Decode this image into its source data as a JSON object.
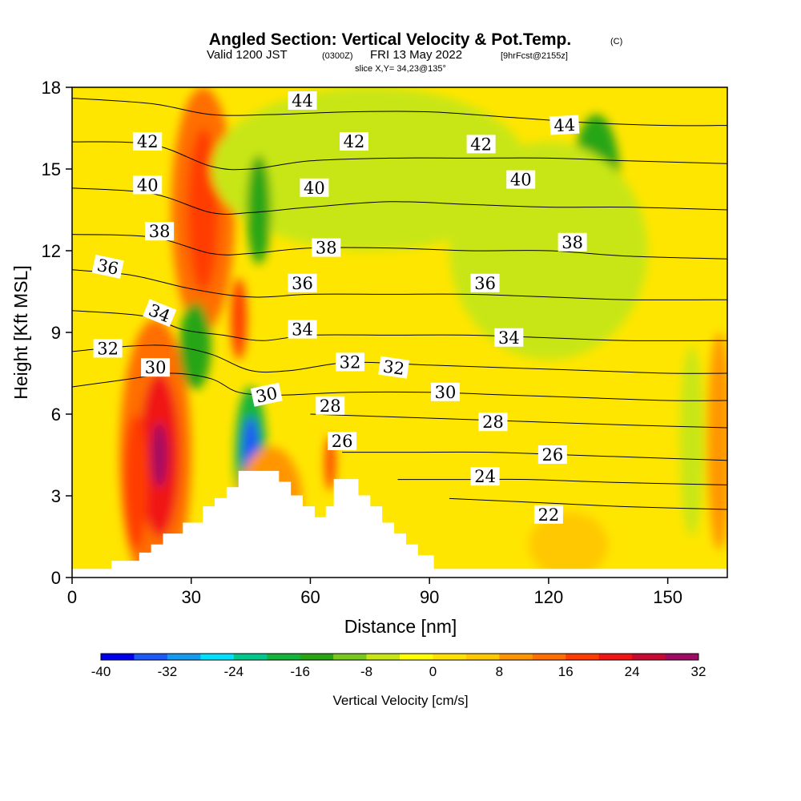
{
  "chart_data": {
    "type": "heatmap",
    "title": "Angled Section: Vertical Velocity & Pot.Temp.",
    "title_mark": "(C)",
    "subtitle_parts": [
      "Valid 1200 JST",
      "(0300Z)",
      "FRI 13 May 2022",
      "[9hrFcst@2155z]"
    ],
    "slice_label": "slice X,Y= 34,23@135°",
    "xlabel": "Distance [nm]",
    "ylabel": "Height [Kft MSL]",
    "xlim": [
      0,
      165
    ],
    "ylim": [
      0,
      18
    ],
    "xticks": [
      0,
      30,
      60,
      90,
      120,
      150
    ],
    "yticks": [
      0,
      3,
      6,
      9,
      12,
      15,
      18
    ],
    "colorbar": {
      "title": "Vertical Velocity [cm/s]",
      "levels": [
        -40,
        -36,
        -32,
        -28,
        -24,
        -20,
        -16,
        -12,
        -8,
        -4,
        0,
        4,
        8,
        12,
        16,
        20,
        24,
        28,
        32
      ],
      "tick_labels": [
        -40,
        -32,
        -24,
        -16,
        -8,
        0,
        8,
        16,
        24,
        32
      ],
      "colors": [
        "#0000ee",
        "#1e5af5",
        "#149bf0",
        "#00e1ff",
        "#00c88c",
        "#14b43c",
        "#28a514",
        "#78c81e",
        "#c8e614",
        "#ffff00",
        "#ffe100",
        "#ffc800",
        "#ff9600",
        "#ff6e00",
        "#ff3c00",
        "#f01414",
        "#c80a32",
        "#a00a64",
        "#780a8c"
      ]
    },
    "terrain_profile": [
      [
        0,
        0.3
      ],
      [
        10,
        0.3
      ],
      [
        10,
        0.6
      ],
      [
        17,
        0.6
      ],
      [
        17,
        0.9
      ],
      [
        20,
        0.9
      ],
      [
        20,
        1.2
      ],
      [
        23,
        1.2
      ],
      [
        23,
        1.6
      ],
      [
        28,
        1.6
      ],
      [
        28,
        2.0
      ],
      [
        33,
        2.0
      ],
      [
        33,
        2.6
      ],
      [
        36,
        2.6
      ],
      [
        36,
        2.9
      ],
      [
        39,
        2.9
      ],
      [
        39,
        3.3
      ],
      [
        42,
        3.3
      ],
      [
        42,
        3.9
      ],
      [
        52,
        3.9
      ],
      [
        52,
        3.5
      ],
      [
        55,
        3.5
      ],
      [
        55,
        3.0
      ],
      [
        58,
        3.0
      ],
      [
        58,
        2.6
      ],
      [
        61,
        2.6
      ],
      [
        61,
        2.2
      ],
      [
        64,
        2.2
      ],
      [
        64,
        2.6
      ],
      [
        66,
        2.6
      ],
      [
        66,
        3.6
      ],
      [
        72,
        3.6
      ],
      [
        72,
        3.0
      ],
      [
        75,
        3.0
      ],
      [
        75,
        2.6
      ],
      [
        78,
        2.6
      ],
      [
        78,
        2.0
      ],
      [
        81,
        2.0
      ],
      [
        81,
        1.6
      ],
      [
        84,
        1.6
      ],
      [
        84,
        1.2
      ],
      [
        87,
        1.2
      ],
      [
        87,
        0.8
      ],
      [
        91,
        0.8
      ],
      [
        91,
        0.3
      ],
      [
        165,
        0.3
      ]
    ],
    "theta_contours": [
      {
        "label": "22",
        "points": [
          [
            95,
            2.9
          ],
          [
            110,
            2.8
          ],
          [
            125,
            2.7
          ],
          [
            140,
            2.6
          ],
          [
            165,
            2.5
          ]
        ]
      },
      {
        "label": "24",
        "points": [
          [
            82,
            3.6
          ],
          [
            100,
            3.6
          ],
          [
            115,
            3.6
          ],
          [
            135,
            3.5
          ],
          [
            165,
            3.4
          ]
        ]
      },
      {
        "label": "26",
        "points": [
          [
            68,
            4.6
          ],
          [
            85,
            4.6
          ],
          [
            105,
            4.6
          ],
          [
            125,
            4.5
          ],
          [
            145,
            4.4
          ],
          [
            165,
            4.3
          ]
        ]
      },
      {
        "label": "28",
        "points": [
          [
            60,
            6.0
          ],
          [
            80,
            5.9
          ],
          [
            100,
            5.8
          ],
          [
            120,
            5.7
          ],
          [
            140,
            5.6
          ],
          [
            165,
            5.5
          ]
        ]
      },
      {
        "label": "30",
        "points": [
          [
            0,
            7.0
          ],
          [
            15,
            7.3
          ],
          [
            25,
            7.5
          ],
          [
            35,
            7.3
          ],
          [
            42,
            6.8
          ],
          [
            52,
            6.7
          ],
          [
            70,
            6.8
          ],
          [
            90,
            6.8
          ],
          [
            110,
            6.7
          ],
          [
            130,
            6.6
          ],
          [
            150,
            6.5
          ],
          [
            165,
            6.5
          ]
        ]
      },
      {
        "label": "32",
        "points": [
          [
            0,
            8.3
          ],
          [
            15,
            8.5
          ],
          [
            25,
            8.5
          ],
          [
            35,
            8.2
          ],
          [
            45,
            7.6
          ],
          [
            55,
            7.6
          ],
          [
            70,
            7.9
          ],
          [
            90,
            7.8
          ],
          [
            110,
            7.7
          ],
          [
            130,
            7.6
          ],
          [
            150,
            7.5
          ],
          [
            165,
            7.5
          ]
        ]
      },
      {
        "label": "34",
        "points": [
          [
            0,
            9.8
          ],
          [
            18,
            9.6
          ],
          [
            28,
            9.1
          ],
          [
            38,
            8.9
          ],
          [
            48,
            8.7
          ],
          [
            60,
            8.9
          ],
          [
            80,
            8.9
          ],
          [
            100,
            8.9
          ],
          [
            120,
            8.8
          ],
          [
            140,
            8.7
          ],
          [
            165,
            8.7
          ]
        ]
      },
      {
        "label": "36",
        "points": [
          [
            0,
            11.3
          ],
          [
            15,
            11.1
          ],
          [
            30,
            10.6
          ],
          [
            45,
            10.3
          ],
          [
            60,
            10.4
          ],
          [
            80,
            10.4
          ],
          [
            100,
            10.4
          ],
          [
            120,
            10.3
          ],
          [
            140,
            10.2
          ],
          [
            165,
            10.2
          ]
        ]
      },
      {
        "label": "38",
        "points": [
          [
            0,
            12.6
          ],
          [
            20,
            12.5
          ],
          [
            35,
            11.9
          ],
          [
            45,
            11.9
          ],
          [
            60,
            12.1
          ],
          [
            80,
            12.1
          ],
          [
            100,
            12.0
          ],
          [
            120,
            12.0
          ],
          [
            140,
            11.8
          ],
          [
            165,
            11.7
          ]
        ]
      },
      {
        "label": "40",
        "points": [
          [
            0,
            14.3
          ],
          [
            20,
            14.1
          ],
          [
            35,
            13.4
          ],
          [
            45,
            13.4
          ],
          [
            60,
            13.6
          ],
          [
            80,
            13.8
          ],
          [
            100,
            13.7
          ],
          [
            120,
            13.6
          ],
          [
            140,
            13.6
          ],
          [
            165,
            13.5
          ]
        ]
      },
      {
        "label": "42",
        "points": [
          [
            0,
            16.0
          ],
          [
            20,
            15.9
          ],
          [
            35,
            15.1
          ],
          [
            45,
            15.0
          ],
          [
            60,
            15.3
          ],
          [
            80,
            15.4
          ],
          [
            100,
            15.4
          ],
          [
            120,
            15.4
          ],
          [
            140,
            15.3
          ],
          [
            165,
            15.2
          ]
        ]
      },
      {
        "label": "44",
        "points": [
          [
            0,
            17.6
          ],
          [
            20,
            17.4
          ],
          [
            35,
            17.0
          ],
          [
            50,
            17.0
          ],
          [
            70,
            17.1
          ],
          [
            90,
            17.1
          ],
          [
            110,
            16.9
          ],
          [
            130,
            16.7
          ],
          [
            150,
            16.6
          ],
          [
            165,
            16.6
          ]
        ]
      }
    ],
    "contour_labels": [
      {
        "text": "44",
        "x": 58,
        "y": 17.5,
        "angle": 0
      },
      {
        "text": "44",
        "x": 124,
        "y": 16.6,
        "angle": -3
      },
      {
        "text": "42",
        "x": 19,
        "y": 16.0,
        "angle": 0
      },
      {
        "text": "42",
        "x": 71,
        "y": 16.0,
        "angle": 0
      },
      {
        "text": "42",
        "x": 103,
        "y": 15.9,
        "angle": 0
      },
      {
        "text": "40",
        "x": 19,
        "y": 14.4,
        "angle": 0
      },
      {
        "text": "40",
        "x": 61,
        "y": 14.3,
        "angle": 0
      },
      {
        "text": "40",
        "x": 113,
        "y": 14.6,
        "angle": 0
      },
      {
        "text": "38",
        "x": 22,
        "y": 12.7,
        "angle": 0
      },
      {
        "text": "38",
        "x": 64,
        "y": 12.1,
        "angle": 0
      },
      {
        "text": "38",
        "x": 126,
        "y": 12.3,
        "angle": 0
      },
      {
        "text": "36",
        "x": 9,
        "y": 11.4,
        "angle": 12
      },
      {
        "text": "36",
        "x": 58,
        "y": 10.8,
        "angle": 0
      },
      {
        "text": "36",
        "x": 104,
        "y": 10.8,
        "angle": 0
      },
      {
        "text": "34",
        "x": 22,
        "y": 9.7,
        "angle": 22
      },
      {
        "text": "34",
        "x": 58,
        "y": 9.1,
        "angle": 0
      },
      {
        "text": "34",
        "x": 110,
        "y": 8.8,
        "angle": 0
      },
      {
        "text": "32",
        "x": 9,
        "y": 8.4,
        "angle": 0
      },
      {
        "text": "32",
        "x": 70,
        "y": 7.9,
        "angle": 0
      },
      {
        "text": "32",
        "x": 81,
        "y": 7.7,
        "angle": 8
      },
      {
        "text": "30",
        "x": 21,
        "y": 7.7,
        "angle": 0
      },
      {
        "text": "30",
        "x": 49,
        "y": 6.7,
        "angle": -12
      },
      {
        "text": "30",
        "x": 94,
        "y": 6.8,
        "angle": 0
      },
      {
        "text": "28",
        "x": 65,
        "y": 6.3,
        "angle": 0
      },
      {
        "text": "28",
        "x": 106,
        "y": 5.7,
        "angle": 0
      },
      {
        "text": "26",
        "x": 68,
        "y": 5.0,
        "angle": 0
      },
      {
        "text": "26",
        "x": 121,
        "y": 4.5,
        "angle": 0
      },
      {
        "text": "24",
        "x": 104,
        "y": 3.7,
        "angle": 0
      },
      {
        "text": "22",
        "x": 120,
        "y": 2.3,
        "angle": 0
      }
    ],
    "velocity_features": [
      {
        "x": 33,
        "y": 13.5,
        "rx": 8,
        "ry": 4.5,
        "value": 12
      },
      {
        "x": 33,
        "y": 13.5,
        "rx": 4,
        "ry": 3,
        "value": 18
      },
      {
        "x": 21,
        "y": 4.5,
        "rx": 9,
        "ry": 5,
        "value": 12
      },
      {
        "x": 22,
        "y": 4.5,
        "rx": 5,
        "ry": 3,
        "value": 22
      },
      {
        "x": 22,
        "y": 4.5,
        "rx": 2,
        "ry": 1.2,
        "value": 30
      },
      {
        "x": 16,
        "y": 3.5,
        "rx": 3,
        "ry": 2.5,
        "value": 18
      },
      {
        "x": 45,
        "y": 4.5,
        "rx": 4,
        "ry": 2.5,
        "value": -20
      },
      {
        "x": 45,
        "y": 4.6,
        "rx": 2.2,
        "ry": 1.3,
        "value": -36
      },
      {
        "x": 132,
        "y": 14.5,
        "rx": 6,
        "ry": 2.5,
        "value": -14
      },
      {
        "x": 75,
        "y": 15,
        "rx": 40,
        "ry": 3,
        "value": -6
      },
      {
        "x": 120,
        "y": 12,
        "rx": 25,
        "ry": 4,
        "value": -6
      },
      {
        "x": 47,
        "y": 13.5,
        "rx": 3,
        "ry": 2,
        "value": -14
      },
      {
        "x": 31,
        "y": 8.5,
        "rx": 4,
        "ry": 1.6,
        "value": -14
      },
      {
        "x": 156,
        "y": 5,
        "rx": 3,
        "ry": 3.5,
        "value": -8
      },
      {
        "x": 163,
        "y": 5,
        "rx": 3,
        "ry": 4,
        "value": 8
      },
      {
        "x": 42,
        "y": 9.5,
        "rx": 2,
        "ry": 1.5,
        "value": 16
      },
      {
        "x": 65,
        "y": 4.2,
        "rx": 1.3,
        "ry": 1,
        "value": 18
      },
      {
        "x": 50,
        "y": 2.8,
        "rx": 8,
        "ry": 2,
        "value": 8
      },
      {
        "x": 125,
        "y": 1.2,
        "rx": 10,
        "ry": 1.2,
        "value": 6
      }
    ]
  }
}
